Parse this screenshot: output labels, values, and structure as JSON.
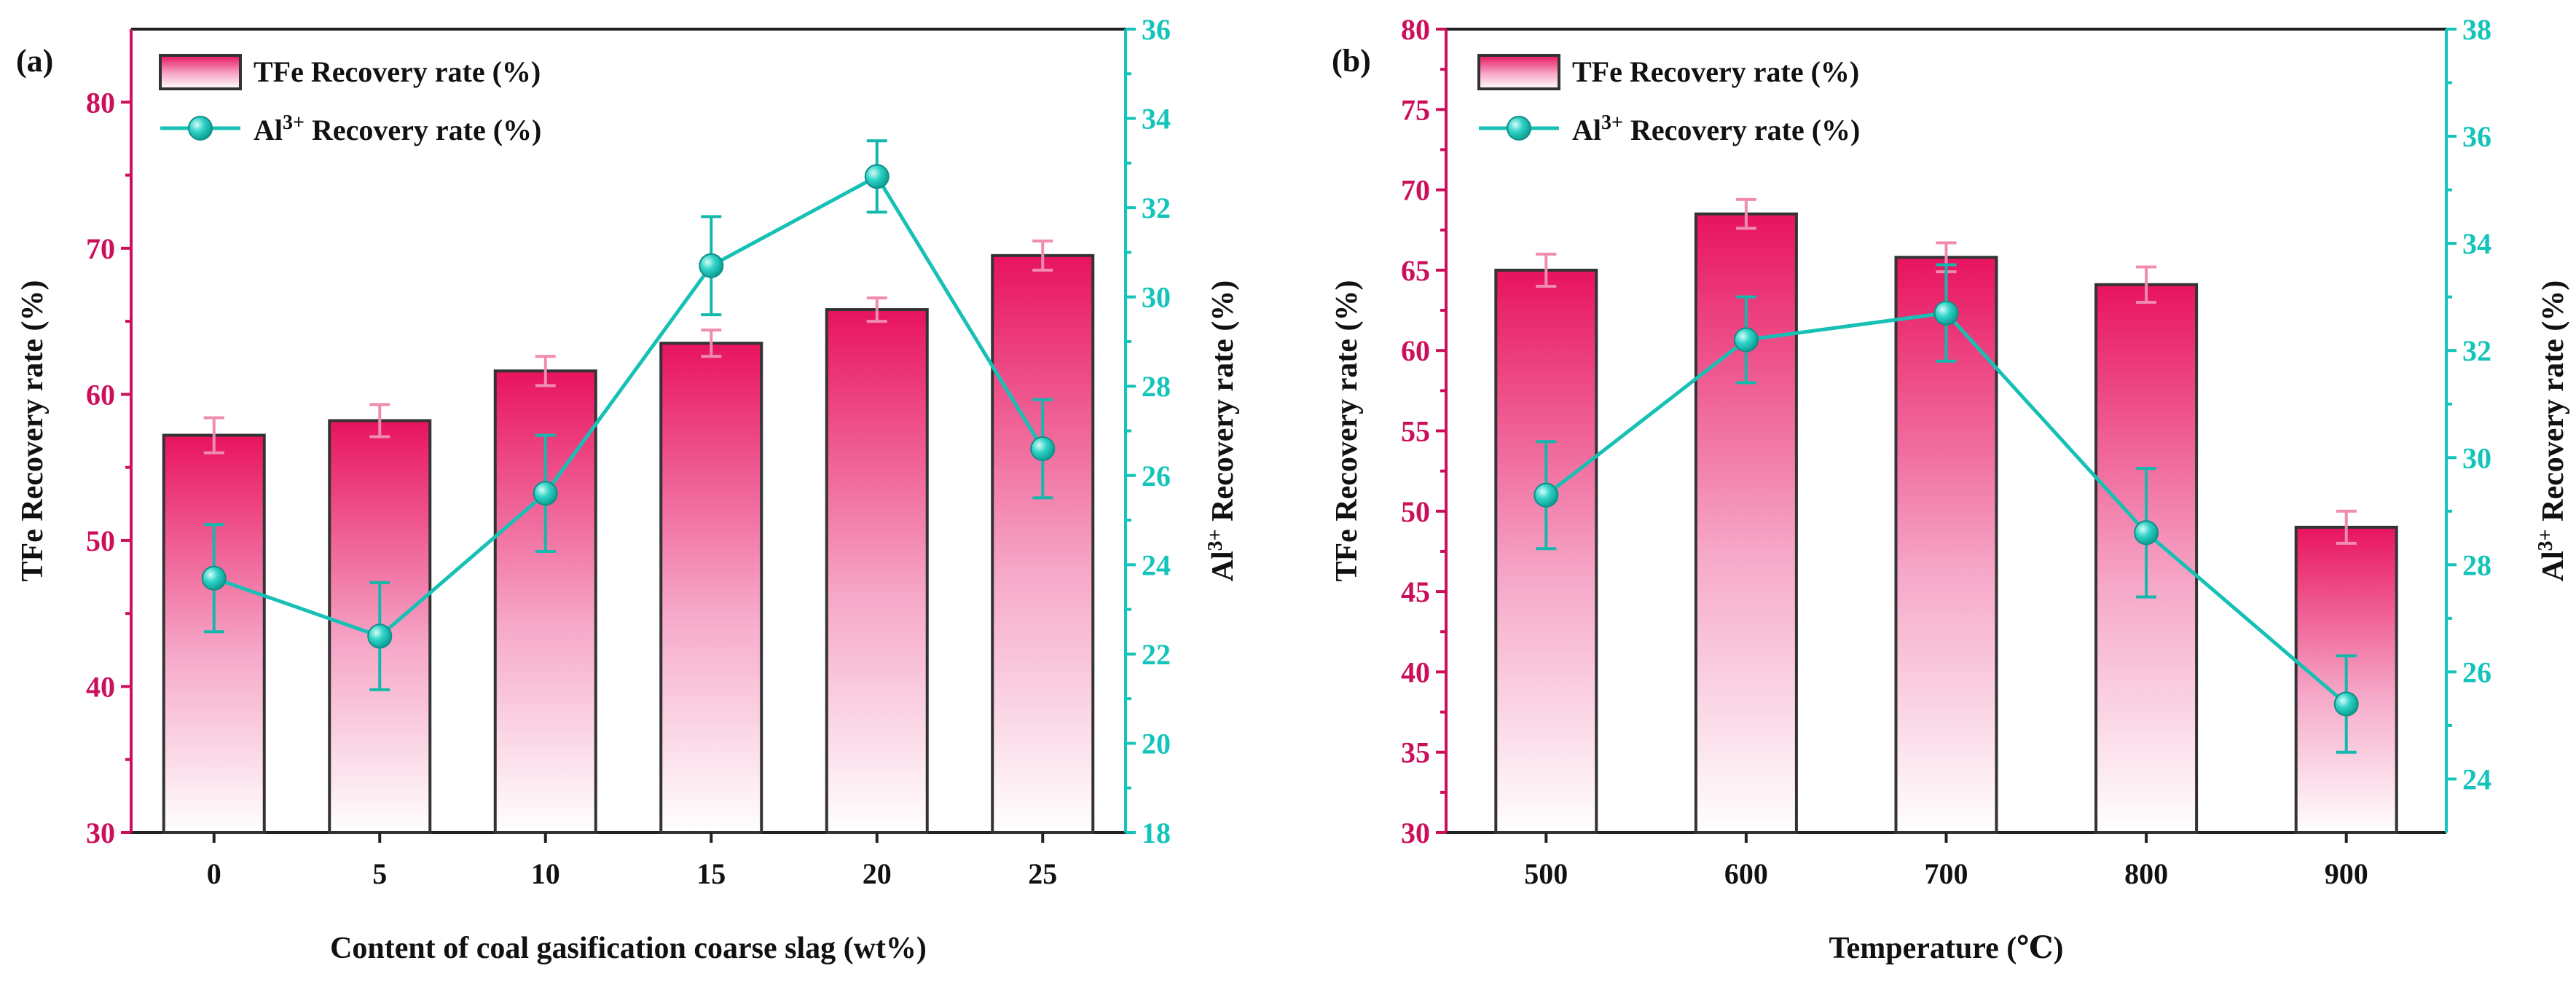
{
  "colors": {
    "bar_top": "#e8135f",
    "bar_bottom": "#ffffff",
    "left_axis": "#cc0f5a",
    "right_axis": "#13c4bb",
    "line": "#17c0b5"
  },
  "chart_data": [
    {
      "type": "bar+line",
      "panel_label": "(a)",
      "xlabel": "Content of coal gasification coarse slag (wt%)",
      "ylabel_left": "TFe Recovery rate (%)",
      "ylabel_right_prefix": "Al",
      "ylabel_right_sup": "3+",
      "ylabel_right_suffix": " Recovery rate (%)",
      "categories": [
        "0",
        "5",
        "10",
        "15",
        "20",
        "25"
      ],
      "left_axis": {
        "min": 30,
        "max": 85,
        "ticks": [
          30,
          40,
          50,
          60,
          70,
          80
        ]
      },
      "right_axis": {
        "min": 18,
        "max": 36,
        "ticks": [
          18,
          20,
          22,
          24,
          26,
          28,
          30,
          32,
          34,
          36
        ]
      },
      "legend": [
        {
          "kind": "bar",
          "label": "TFe Recovery rate (%)"
        },
        {
          "kind": "line",
          "label_prefix": "Al",
          "label_sup": "3+",
          "label_suffix": " Recovery rate (%)"
        }
      ],
      "series": [
        {
          "name": "TFe Recovery rate (%)",
          "kind": "bar",
          "axis": "left",
          "values": [
            57.2,
            58.2,
            61.6,
            63.5,
            65.8,
            69.5
          ],
          "errors": [
            1.2,
            1.1,
            1.0,
            0.9,
            0.8,
            1.0
          ]
        },
        {
          "name": "Al3+ Recovery rate (%)",
          "kind": "line",
          "axis": "right",
          "values": [
            23.7,
            22.4,
            25.6,
            30.7,
            32.7,
            26.6
          ],
          "errors": [
            1.2,
            1.2,
            1.3,
            1.1,
            0.8,
            1.1
          ]
        }
      ]
    },
    {
      "type": "bar+line",
      "panel_label": "(b)",
      "xlabel": "Temperature (℃)",
      "ylabel_left": "TFe Recovery rate (%)",
      "ylabel_right_prefix": "Al",
      "ylabel_right_sup": "3+",
      "ylabel_right_suffix": " Recovery rate (%)",
      "categories": [
        "500",
        "600",
        "700",
        "800",
        "900"
      ],
      "left_axis": {
        "min": 30,
        "max": 80,
        "ticks": [
          30,
          35,
          40,
          45,
          50,
          55,
          60,
          65,
          70,
          75,
          80
        ]
      },
      "right_axis": {
        "min": 23,
        "max": 38,
        "ticks": [
          24,
          26,
          28,
          30,
          32,
          34,
          36,
          38
        ]
      },
      "legend": [
        {
          "kind": "bar",
          "label": "TFe Recovery rate (%)"
        },
        {
          "kind": "line",
          "label_prefix": "Al",
          "label_sup": "3+",
          "label_suffix": " Recovery rate (%)"
        }
      ],
      "series": [
        {
          "name": "TFe Recovery rate (%)",
          "kind": "bar",
          "axis": "left",
          "values": [
            65.0,
            68.5,
            65.8,
            64.1,
            49.0
          ],
          "errors": [
            1.0,
            0.9,
            0.9,
            1.1,
            1.0
          ]
        },
        {
          "name": "Al3+ Recovery rate (%)",
          "kind": "line",
          "axis": "right",
          "values": [
            29.3,
            32.2,
            32.7,
            28.6,
            25.4
          ],
          "errors": [
            1.0,
            0.8,
            0.9,
            1.2,
            0.9
          ]
        }
      ]
    }
  ]
}
